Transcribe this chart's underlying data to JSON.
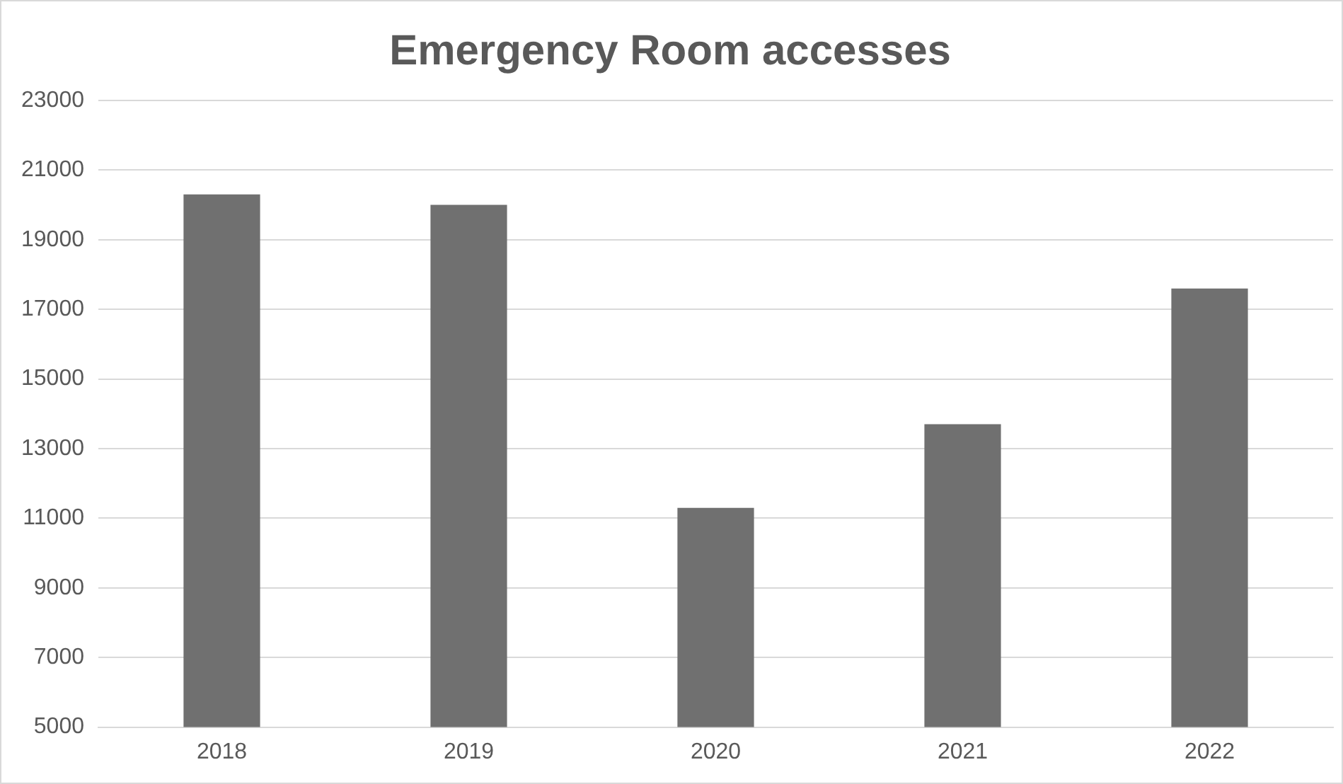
{
  "chart_data": {
    "type": "bar",
    "title": "Emergency Room accesses",
    "categories": [
      "2018",
      "2019",
      "2020",
      "2021",
      "2022"
    ],
    "values": [
      20300,
      20000,
      11300,
      13700,
      17600
    ],
    "color": "#707070",
    "ylim": [
      5000,
      23000
    ],
    "yticks": [
      5000,
      7000,
      9000,
      11000,
      13000,
      15000,
      17000,
      19000,
      21000,
      23000
    ],
    "grid": "y",
    "legend": false
  }
}
